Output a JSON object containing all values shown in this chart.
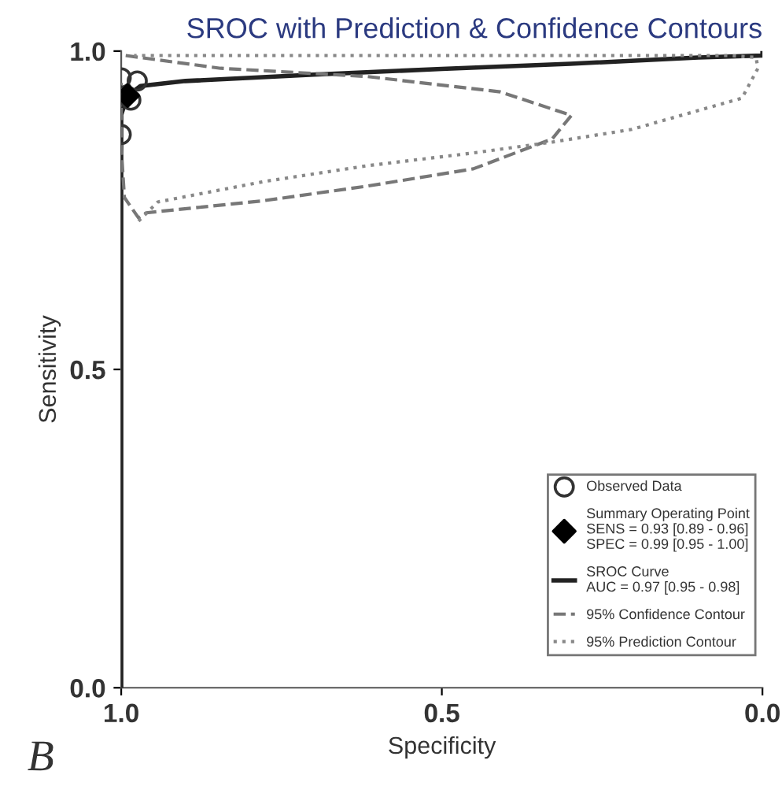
{
  "chart_data": {
    "type": "line",
    "title": "SROC with Prediction & Confidence Contours",
    "xlabel": "Specificity",
    "ylabel": "Sensitivity",
    "xlim": [
      1.0,
      0.0
    ],
    "ylim": [
      0.0,
      1.0
    ],
    "xticks": [
      {
        "value": 1,
        "label": "1.0"
      },
      0.5,
      {
        "value": 0,
        "label": "0.0"
      }
    ],
    "yticks": [
      {
        "value": 0,
        "label": "0.0"
      },
      0.5,
      {
        "value": 1,
        "label": "1.0"
      }
    ],
    "grid": false,
    "legend": "bottom right",
    "annotations": [
      "B"
    ],
    "series": [
      {
        "name": "Observed Data",
        "type": "scatter",
        "marker": "circle",
        "color": "#333333",
        "x": [
          1.0,
          0.975,
          0.985,
          1.0
        ],
        "values": [
          0.958,
          0.953,
          0.923,
          0.869
        ]
      },
      {
        "name": "Summary Operating Point\nSENS = 0.93 [0.89 - 0.96]\nSPEC = 0.99 [0.95 - 1.00]",
        "type": "scatter",
        "marker": "diamond",
        "color": "#000000",
        "x": [
          0.99
        ],
        "values": [
          0.93
        ]
      },
      {
        "name": "SROC Curve\nAUC = 0.97 [0.95 - 0.98]",
        "line_style": "solid",
        "color": "#222222",
        "x": [
          1.0,
          1.0,
          0.99,
          0.97,
          0.9,
          0.7,
          0.5,
          0.3,
          0.1,
          0.0,
          0.0
        ],
        "values": [
          0.0,
          0.9,
          0.93,
          0.945,
          0.953,
          0.963,
          0.972,
          0.98,
          0.99,
          0.993,
          1.0
        ]
      },
      {
        "name": "95% Confidence Contour",
        "line_style": "dashed",
        "color": "#777777",
        "x": [
          0.993,
          0.845,
          0.616,
          0.409,
          0.298,
          0.328,
          0.451,
          0.616,
          0.778,
          0.961,
          0.973,
          0.995,
          1.0,
          1.0
        ],
        "values": [
          0.993,
          0.973,
          0.96,
          0.936,
          0.899,
          0.862,
          0.815,
          0.788,
          0.765,
          0.746,
          0.738,
          0.77,
          0.85,
          0.95
        ]
      },
      {
        "name": "95% Prediction Contour",
        "line_style": "dotted",
        "color": "#888888",
        "x": [
          0.973,
          0.943,
          0.778,
          0.616,
          0.451,
          0.328,
          0.204,
          0.032,
          0.007,
          0.01,
          0.05,
          0.5,
          0.98
        ],
        "values": [
          0.733,
          0.763,
          0.795,
          0.82,
          0.84,
          0.857,
          0.877,
          0.926,
          0.973,
          0.99,
          0.993,
          0.993,
          0.993
        ]
      }
    ]
  }
}
